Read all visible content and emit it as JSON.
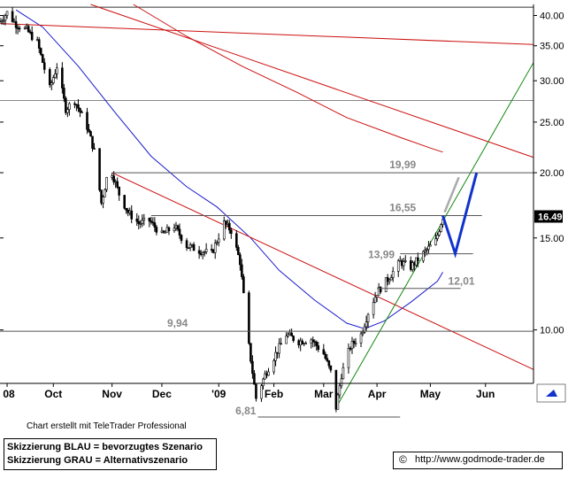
{
  "chart_data": {
    "type": "candlestick",
    "y_scale": "log",
    "ylim": [
      7.9,
      42
    ],
    "y_ticks": [
      "40.00",
      "35.00",
      "30.00",
      "25.00",
      "20.00",
      "15.00",
      "10.00"
    ],
    "y_tick_values": [
      40,
      35,
      30,
      25,
      20,
      15,
      10
    ],
    "x_ticks": [
      {
        "label": "08",
        "date": "2008-09-05"
      },
      {
        "label": "Oct",
        "date": "2008-10-01"
      },
      {
        "label": "Nov",
        "date": "2008-11-03"
      },
      {
        "label": "Dec",
        "date": "2008-12-01"
      },
      {
        "label": "'09",
        "date": "2009-01-02"
      },
      {
        "label": "Feb",
        "date": "2009-02-02"
      },
      {
        "label": "Mar",
        "date": "2009-03-02"
      },
      {
        "label": "Apr",
        "date": "2009-04-01"
      },
      {
        "label": "May",
        "date": "2009-05-01"
      },
      {
        "label": "Jun",
        "date": "2009-06-01"
      }
    ],
    "xlim": [
      "2008-09-01",
      "2009-06-28"
    ],
    "price_path": [
      [
        "2008-09-01",
        39.0
      ],
      [
        "2008-09-05",
        40.5
      ],
      [
        "2008-09-10",
        38.5
      ],
      [
        "2008-09-16",
        37.5
      ],
      [
        "2008-09-22",
        35.5
      ],
      [
        "2008-09-29",
        29.0
      ],
      [
        "2008-10-03",
        32.0
      ],
      [
        "2008-10-08",
        26.5
      ],
      [
        "2008-10-13",
        27.5
      ],
      [
        "2008-10-20",
        24.5
      ],
      [
        "2008-10-24",
        22.0
      ],
      [
        "2008-10-28",
        17.5
      ],
      [
        "2008-10-31",
        19.5
      ],
      [
        "2008-11-03",
        20.0
      ],
      [
        "2008-11-07",
        18.2
      ],
      [
        "2008-11-12",
        16.8
      ],
      [
        "2008-11-18",
        16.0
      ],
      [
        "2008-11-24",
        16.2
      ],
      [
        "2008-12-01",
        15.2
      ],
      [
        "2008-12-08",
        15.8
      ],
      [
        "2008-12-15",
        14.5
      ],
      [
        "2008-12-22",
        14.2
      ],
      [
        "2008-12-29",
        14.0
      ],
      [
        "2009-01-05",
        16.0
      ],
      [
        "2009-01-09",
        15.5
      ],
      [
        "2009-01-14",
        13.5
      ],
      [
        "2009-01-19",
        9.3
      ],
      [
        "2009-01-23",
        7.4
      ],
      [
        "2009-01-28",
        8.2
      ],
      [
        "2009-02-03",
        9.0
      ],
      [
        "2009-02-09",
        9.8
      ],
      [
        "2009-02-16",
        9.5
      ],
      [
        "2009-02-23",
        9.6
      ],
      [
        "2009-03-02",
        9.0
      ],
      [
        "2009-03-06",
        8.3
      ],
      [
        "2009-03-09",
        7.1
      ],
      [
        "2009-03-12",
        8.2
      ],
      [
        "2009-03-17",
        9.3
      ],
      [
        "2009-03-23",
        9.8
      ],
      [
        "2009-03-27",
        10.8
      ],
      [
        "2009-04-01",
        11.8
      ],
      [
        "2009-04-07",
        12.5
      ],
      [
        "2009-04-14",
        13.5
      ],
      [
        "2009-04-20",
        13.2
      ],
      [
        "2009-04-27",
        14.0
      ],
      [
        "2009-05-04",
        14.8
      ],
      [
        "2009-05-08",
        16.49
      ]
    ],
    "series": [
      {
        "kind": "moving-average",
        "color": "#1a1acc",
        "points": [
          [
            "2008-09-10",
            41
          ],
          [
            "2008-09-25",
            38
          ],
          [
            "2008-10-15",
            32
          ],
          [
            "2008-11-05",
            26
          ],
          [
            "2008-11-25",
            21.5
          ],
          [
            "2008-12-15",
            18.8
          ],
          [
            "2009-01-01",
            17.2
          ],
          [
            "2009-01-20",
            15.0
          ],
          [
            "2009-02-05",
            13.0
          ],
          [
            "2009-02-25",
            11.4
          ],
          [
            "2009-03-15",
            10.3
          ],
          [
            "2009-03-25",
            10.05
          ],
          [
            "2009-04-05",
            10.4
          ],
          [
            "2009-04-20",
            11.3
          ],
          [
            "2009-05-05",
            12.4
          ],
          [
            "2009-05-08",
            12.9
          ]
        ]
      },
      {
        "kind": "moving-average",
        "color": "#cc1111",
        "points": [
          [
            "2008-11-15",
            42
          ],
          [
            "2008-12-15",
            36.5
          ],
          [
            "2009-01-15",
            32
          ],
          [
            "2009-02-15",
            28.5
          ],
          [
            "2009-03-15",
            25.5
          ],
          [
            "2009-04-15",
            23.3
          ],
          [
            "2009-05-01",
            22.3
          ],
          [
            "2009-05-08",
            21.9
          ]
        ]
      }
    ],
    "trendlines": [
      {
        "color": "#cc1111",
        "from": [
          "2008-10-22",
          42
        ],
        "to": [
          "2009-06-28",
          21.4
        ]
      },
      {
        "color": "#cc1111",
        "from": [
          "2008-09-01",
          38.6
        ],
        "to": [
          "2009-06-28",
          35.2
        ]
      },
      {
        "color": "#cc1111",
        "from": [
          "2008-11-03",
          20.0
        ],
        "to": [
          "2009-06-28",
          8.4
        ]
      },
      {
        "color": "#118811",
        "from": [
          "2009-03-09",
          7.1
        ],
        "to": [
          "2009-06-28",
          32.5
        ]
      }
    ],
    "levels": [
      {
        "label": "19,99",
        "value": 19.99,
        "from": "2008-11-03",
        "to": "2009-06-28",
        "label_at": "2009-04-08",
        "label_pos": "above"
      },
      {
        "label": "16,55",
        "value": 16.55,
        "from": "2008-11-25",
        "to": "2009-05-30",
        "label_at": "2009-04-08",
        "label_pos": "above"
      },
      {
        "label": "13,99",
        "value": 13.99,
        "from": "2009-04-14",
        "to": "2009-05-25",
        "label_at": "2009-04-01",
        "label_pos": "left"
      },
      {
        "label": "12,01",
        "value": 12.01,
        "from": "2009-04-01",
        "to": "2009-05-18",
        "label_at": "2009-05-11",
        "label_pos": "right"
      },
      {
        "label": "9,94",
        "value": 9.94,
        "from": "2008-09-01",
        "to": "2009-06-28",
        "label_at": "2008-12-04",
        "label_pos": "above"
      },
      {
        "label": "6,81",
        "value": 6.81,
        "from": "2009-01-24",
        "to": "2009-04-14",
        "label_at": "2009-01-18",
        "label_pos": "left"
      }
    ],
    "reference_lines": [
      {
        "value": 41.5,
        "color": "#333333"
      },
      {
        "value": 27.5,
        "color": "#888888"
      }
    ],
    "scenario_primary": {
      "color": "#1133cc",
      "points": [
        [
          "2009-05-08",
          16.55
        ],
        [
          "2009-05-15",
          14.0
        ],
        [
          "2009-05-27",
          19.99
        ]
      ]
    },
    "scenario_alternative": {
      "color": "#aaaaaa",
      "points": [
        [
          "2009-05-09",
          16.8
        ],
        [
          "2009-05-17",
          19.6
        ]
      ]
    },
    "last_price": {
      "label": "16.49",
      "value": 16.49
    }
  },
  "texts": {
    "credit": "Chart erstellt mit TeleTrader Professional",
    "legend_blue": "Skizzierung BLAU = bevorzugtes Szenario",
    "legend_gray": "Skizzierung GRAU = Alternativszenario",
    "copyright_symbol": "©",
    "url": "http://www.godmode-trader.de"
  },
  "icons": {
    "corner": "up-arrow-icon"
  }
}
